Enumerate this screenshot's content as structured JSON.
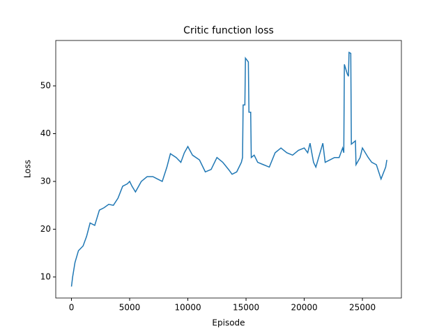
{
  "chart_data": {
    "type": "line",
    "title": "Critic function loss",
    "x_label": "Episode",
    "y_label": "Loss",
    "xlim": [
      -1350,
      28350
    ],
    "ylim": [
      5.6,
      59.5
    ],
    "xticks": [
      0,
      5000,
      10000,
      15000,
      20000,
      25000
    ],
    "yticks": [
      10,
      20,
      30,
      40,
      50
    ],
    "color": "#1f77b4",
    "x": [
      0,
      100,
      300,
      600,
      1000,
      1300,
      1600,
      2000,
      2400,
      2800,
      3200,
      3600,
      4000,
      4400,
      4800,
      5000,
      5200,
      5500,
      6000,
      6500,
      7000,
      7400,
      7800,
      8200,
      8500,
      9000,
      9400,
      9700,
      10000,
      10400,
      11000,
      11500,
      12000,
      12500,
      13000,
      13500,
      13800,
      14200,
      14600,
      14700,
      14750,
      14900,
      14950,
      15200,
      15250,
      15400,
      15450,
      15700,
      16000,
      16500,
      17000,
      17500,
      18000,
      18500,
      19000,
      19500,
      20000,
      20300,
      20500,
      20800,
      21000,
      21300,
      21600,
      21800,
      22200,
      22600,
      23000,
      23300,
      23400,
      23450,
      23700,
      23800,
      23850,
      24000,
      24050,
      24400,
      24450,
      24800,
      25000,
      25500,
      25800,
      26200,
      26600,
      27000,
      27100
    ],
    "values": [
      8,
      10,
      13,
      15.5,
      16.5,
      18.5,
      21.3,
      20.8,
      24,
      24.5,
      25.2,
      25,
      26.5,
      29,
      29.5,
      30,
      29,
      27.8,
      30,
      31,
      31,
      30.5,
      30,
      33,
      35.8,
      35,
      34,
      36,
      37.3,
      35.5,
      34.5,
      32,
      32.5,
      35,
      34,
      32.5,
      31.5,
      32,
      34,
      35,
      46,
      46,
      55.8,
      55,
      44.5,
      44.5,
      35,
      35.5,
      34,
      33.5,
      33,
      36,
      37,
      36,
      35.5,
      36.5,
      37,
      36,
      38,
      34,
      33,
      35.5,
      38,
      34,
      34.5,
      35,
      35,
      37,
      36,
      54.5,
      52.5,
      52,
      57,
      56.8,
      37.8,
      38.5,
      33.5,
      35,
      37,
      35,
      34,
      33.5,
      30.5,
      33,
      34.5
    ]
  }
}
